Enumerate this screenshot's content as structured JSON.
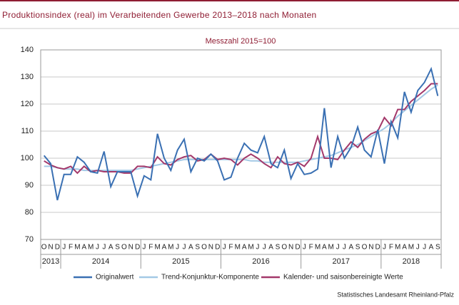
{
  "chart_data": {
    "type": "line",
    "title": "Produktionsindex (real) im Verarbeitenden Gewerbe 2013–2018 nach Monaten",
    "subtitle": "Messzahl 2015=100",
    "source": "Statistisches Landesamt Rheinland-Pfalz",
    "categories": [
      "O",
      "N",
      "D",
      "J",
      "F",
      "M",
      "A",
      "M",
      "J",
      "J",
      "A",
      "S",
      "O",
      "N",
      "D",
      "J",
      "F",
      "M",
      "A",
      "M",
      "J",
      "J",
      "A",
      "S",
      "O",
      "N",
      "D",
      "J",
      "F",
      "M",
      "A",
      "M",
      "J",
      "J",
      "A",
      "S",
      "O",
      "N",
      "D",
      "J",
      "F",
      "M",
      "A",
      "M",
      "J",
      "J",
      "A",
      "S",
      "O",
      "N",
      "D",
      "J",
      "F",
      "M",
      "A",
      "M",
      "J",
      "J",
      "A",
      "S"
    ],
    "years": [
      "2013",
      "2014",
      "2015",
      "2016",
      "2017",
      "2018"
    ],
    "ylim": [
      70,
      140
    ],
    "yticks": [
      70,
      80,
      90,
      100,
      110,
      120,
      130,
      140
    ],
    "grid": true,
    "legend": "bottom",
    "series": [
      {
        "name": "Originalwert",
        "color": "#3a70b3",
        "values": [
          101,
          98,
          84.5,
          94,
          94,
          100.5,
          98.5,
          95,
          94.5,
          102.5,
          89.5,
          95,
          95,
          95,
          86,
          93.5,
          92,
          109,
          100,
          95.5,
          103,
          107,
          95,
          100,
          99,
          101.5,
          99,
          92,
          93,
          100,
          105.5,
          103,
          102,
          108,
          98,
          96.5,
          103,
          92.5,
          98,
          94,
          94.5,
          96,
          118.5,
          96.5,
          108,
          100,
          104,
          111.5,
          103,
          100.5,
          110.5,
          98,
          113.5,
          107.5,
          124.5,
          117,
          125,
          128,
          133,
          123
        ]
      },
      {
        "name": "Trend-Konjunktur-Komponente",
        "color": "#a3c9e6",
        "values": [
          97,
          97,
          96.5,
          96,
          96,
          96,
          95.5,
          95.5,
          95.5,
          95.5,
          95.5,
          95.5,
          95.5,
          95.5,
          96,
          96.5,
          97,
          97.5,
          98,
          98.5,
          99,
          99.5,
          99.5,
          99.5,
          99.5,
          99.5,
          99.5,
          99.5,
          99.5,
          99.5,
          99.5,
          99,
          99,
          98.5,
          98.5,
          98.5,
          98.5,
          98.5,
          98.5,
          99,
          99.5,
          100,
          100.5,
          101,
          102,
          103,
          104,
          105,
          106.5,
          108,
          109.5,
          111,
          113,
          115.5,
          117.5,
          119.5,
          121.5,
          123.5,
          125.5,
          127
        ]
      },
      {
        "name": "Kalender- und saisonbereinigte Werte",
        "color": "#a3386a",
        "values": [
          99,
          97.5,
          96.5,
          96,
          97,
          94.5,
          97,
          95,
          95.5,
          95,
          95,
          95,
          94.5,
          94.5,
          97,
          97,
          96.5,
          100.5,
          98,
          97.5,
          99.5,
          100.5,
          101,
          99,
          99.5,
          101.5,
          99.5,
          100,
          99.5,
          97.5,
          100,
          101.5,
          100,
          98,
          96.5,
          100.5,
          98,
          97.5,
          98.5,
          97,
          100,
          108,
          100,
          100,
          99.5,
          103,
          106,
          104,
          107,
          109,
          110,
          115,
          112,
          118,
          118,
          121,
          123,
          125,
          127.5,
          127.5
        ]
      }
    ]
  }
}
